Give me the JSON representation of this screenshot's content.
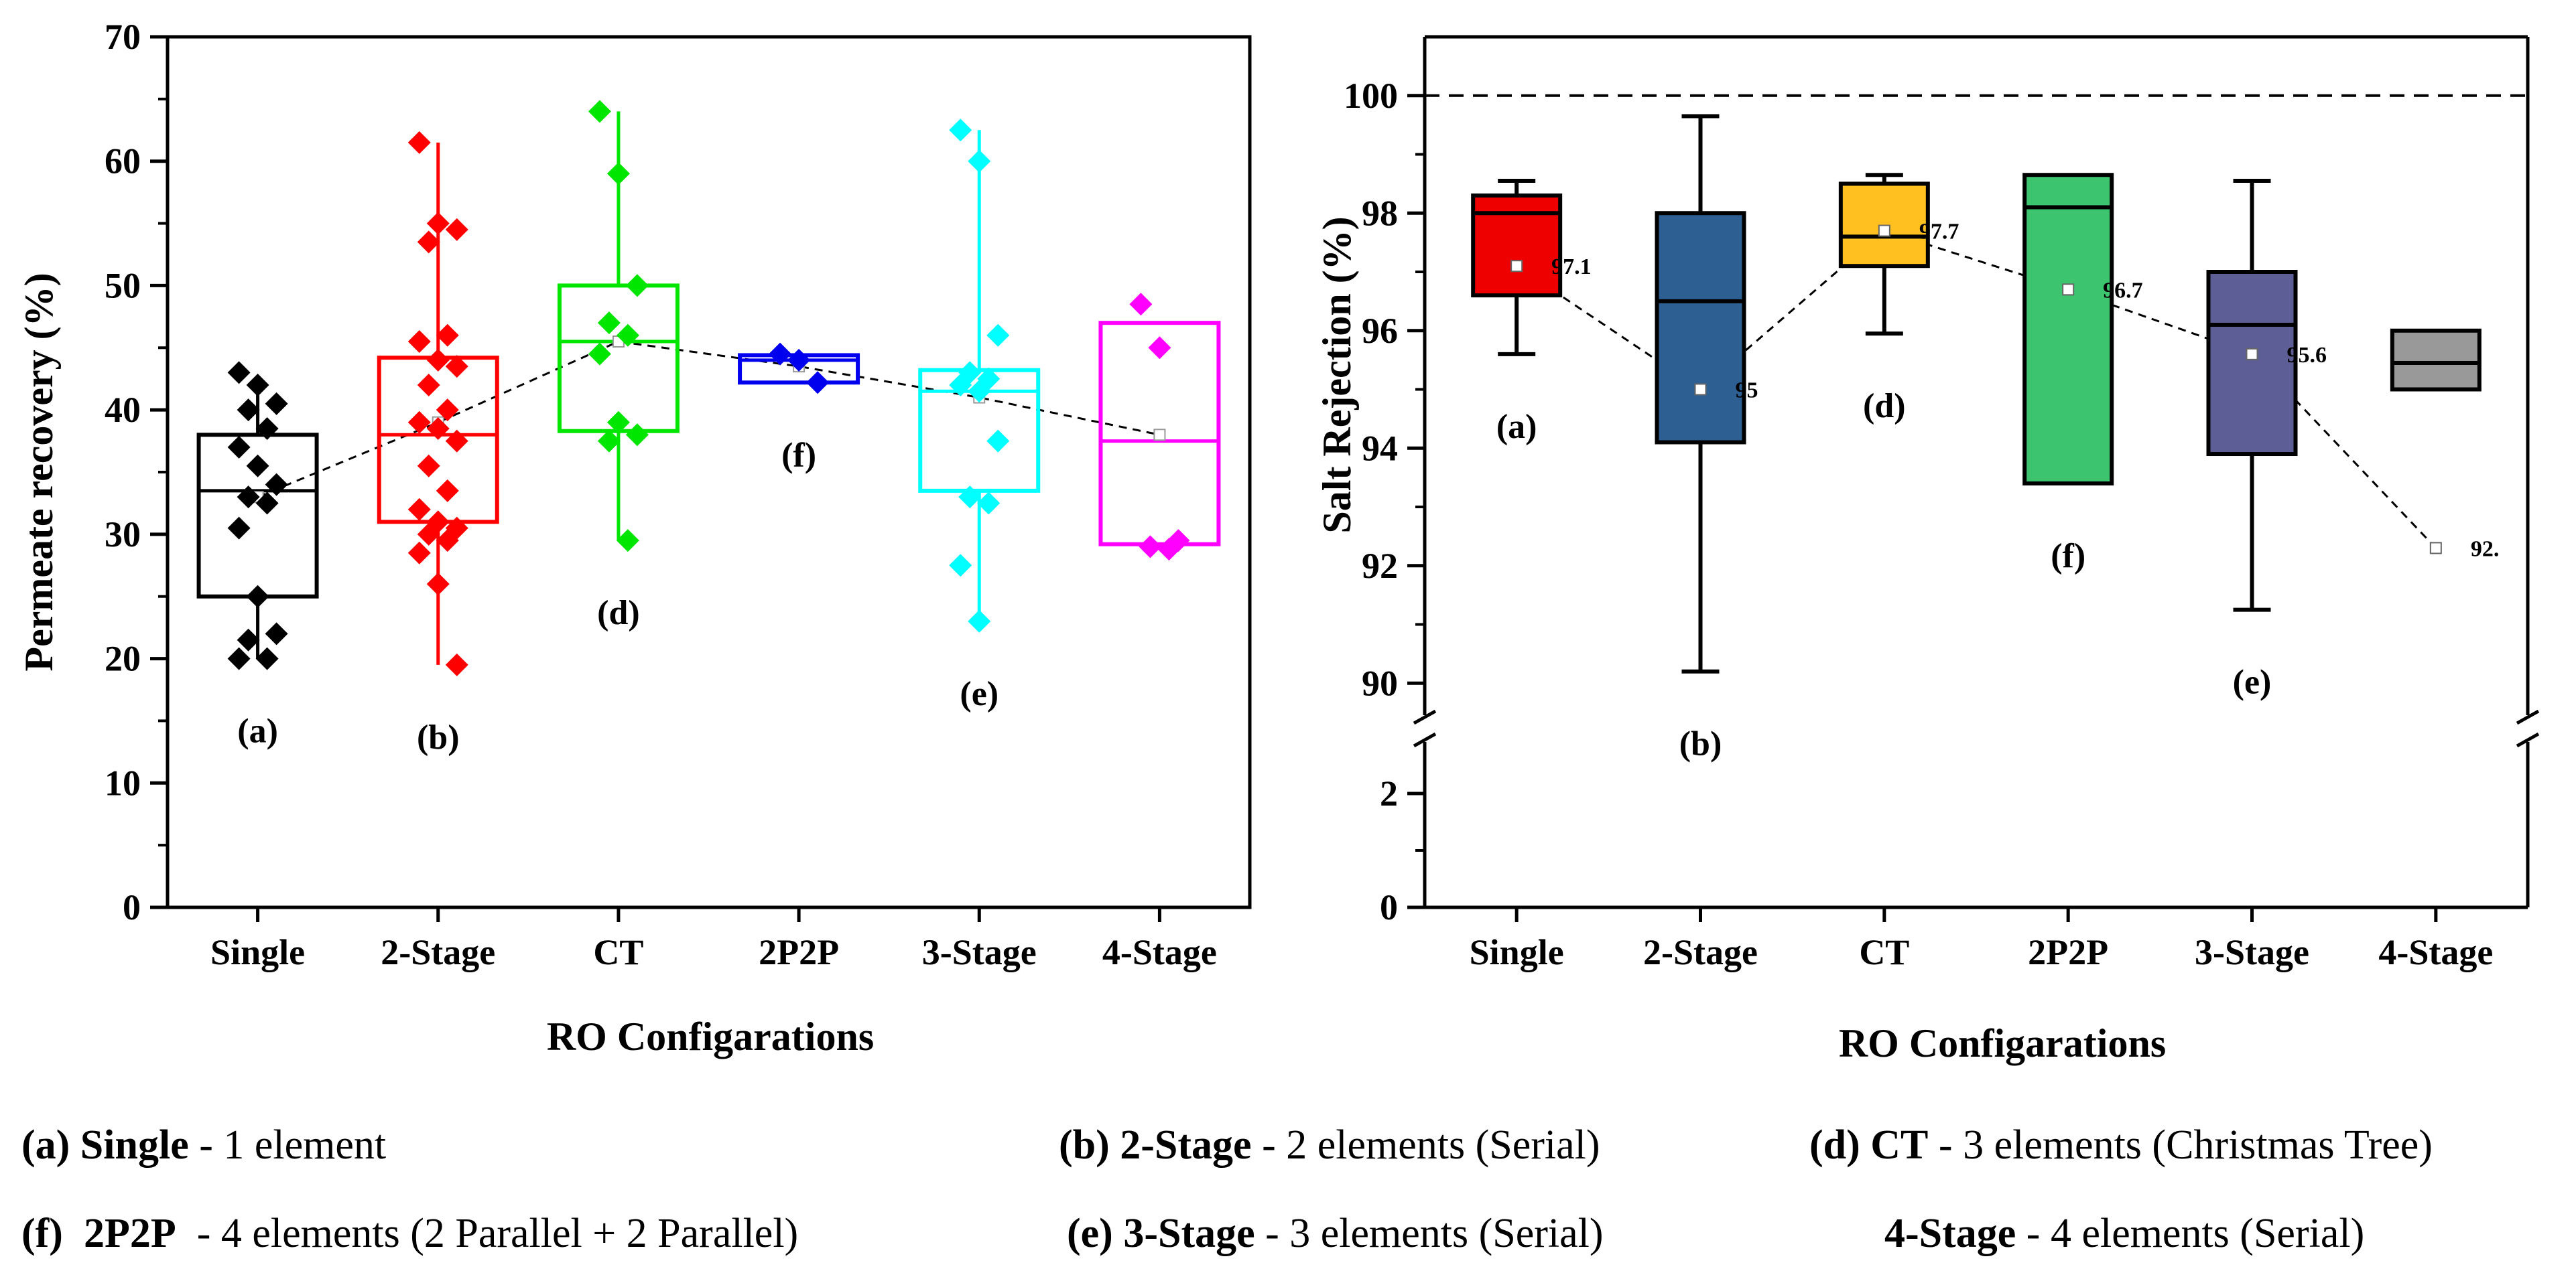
{
  "chart_data": [
    {
      "type": "box",
      "title": "",
      "xlabel": "RO Configarations",
      "ylabel": "Permeate recovery (%)",
      "ylim": [
        0,
        70
      ],
      "yticks": [
        0,
        10,
        20,
        30,
        40,
        50,
        60,
        70
      ],
      "categories": [
        "Single",
        "2-Stage",
        "CT",
        "2P2P",
        "3-Stage",
        "4-Stage"
      ],
      "letters": [
        "(a)",
        "(b)",
        "(d)",
        "(f)",
        "(e)",
        ""
      ],
      "colors": [
        "#000000",
        "#ff0000",
        "#00e600",
        "#0000ee",
        "#00ffff",
        "#ff00ff"
      ],
      "series": [
        {
          "name": "Single",
          "q1": 25,
          "median": 33.5,
          "q3": 38,
          "mean": 33,
          "whisker_low": 20,
          "whisker_high": 42.5,
          "points": [
            43,
            42,
            40.5,
            40,
            38.5,
            37,
            35.5,
            34,
            33,
            32.5,
            30.5,
            25,
            22,
            21.5,
            20,
            20
          ]
        },
        {
          "name": "2-Stage",
          "q1": 31,
          "median": 38,
          "q3": 44.2,
          "mean": 39,
          "whisker_low": 19.5,
          "whisker_high": 61.5,
          "points": [
            61.5,
            55,
            54.5,
            53.5,
            46,
            45.5,
            44,
            43.5,
            42,
            40,
            39,
            38.5,
            37.5,
            35.5,
            33.5,
            32,
            31,
            30.5,
            30,
            29.5,
            28.5,
            26,
            19.5
          ]
        },
        {
          "name": "CT",
          "q1": 38.3,
          "median": 45.5,
          "q3": 50,
          "mean": 45.5,
          "whisker_low": 29.5,
          "whisker_high": 64,
          "points": [
            64,
            59,
            50,
            47,
            46,
            44.5,
            39,
            38,
            37.5,
            29.5
          ]
        },
        {
          "name": "2P2P",
          "q1": 42.2,
          "median": 44,
          "q3": 44.4,
          "mean": 43.5,
          "whisker_low": 42.2,
          "whisker_high": 44.4,
          "points": [
            44.5,
            44,
            42.2
          ]
        },
        {
          "name": "3-Stage",
          "q1": 33.5,
          "median": 41.5,
          "q3": 43.2,
          "mean": 41,
          "whisker_low": 23,
          "whisker_high": 62.5,
          "points": [
            62.5,
            60,
            46,
            43,
            42.5,
            42,
            41.5,
            37.5,
            33,
            32.5,
            27.5,
            23
          ]
        },
        {
          "name": "4-Stage",
          "q1": 29.2,
          "median": 37.5,
          "q3": 47,
          "mean": 38,
          "whisker_low": 29.2,
          "whisker_high": 47,
          "points": [
            48.5,
            45,
            29.5,
            29,
            28.8
          ]
        }
      ]
    },
    {
      "type": "box",
      "title": "",
      "xlabel": "RO Configarations",
      "ylabel": "Salt Rejection (%)",
      "ylim_lower": [
        0,
        3
      ],
      "ylim_upper": [
        89,
        101
      ],
      "axis_break": true,
      "yticks": [
        0,
        2,
        90,
        92,
        94,
        96,
        98,
        100
      ],
      "reference_line": 100,
      "categories": [
        "Single",
        "2-Stage",
        "CT",
        "2P2P",
        "3-Stage",
        "4-Stage"
      ],
      "letters": [
        "(a)",
        "(b)",
        "(d)",
        "(f)",
        "(e)",
        ""
      ],
      "colors": [
        "#ee0000",
        "#2e5f93",
        "#ffc020",
        "#3cc46e",
        "#5e5e96",
        "#999999"
      ],
      "mean_labels": [
        "97.1",
        "95",
        "97.7",
        "96.7",
        "95.6",
        "92."
      ],
      "series": [
        {
          "name": "Single",
          "q1": 96.6,
          "median": 98,
          "q3": 98.3,
          "mean": 97.1,
          "whisker_low": 95.6,
          "whisker_high": 98.55
        },
        {
          "name": "2-Stage",
          "q1": 94.1,
          "median": 96.5,
          "q3": 98,
          "mean": 95,
          "whisker_low": 90.2,
          "whisker_high": 99.65
        },
        {
          "name": "CT",
          "q1": 97.1,
          "median": 97.6,
          "q3": 98.5,
          "mean": 97.7,
          "whisker_low": 95.95,
          "whisker_high": 98.65
        },
        {
          "name": "2P2P",
          "q1": 93.4,
          "median": 98.1,
          "q3": 98.65,
          "mean": 96.7,
          "whisker_low": 93.4,
          "whisker_high": 98.65
        },
        {
          "name": "3-Stage",
          "q1": 93.9,
          "median": 96.1,
          "q3": 97,
          "mean": 95.6,
          "whisker_low": 91.25,
          "whisker_high": 98.55
        },
        {
          "name": "4-Stage",
          "q1": 95,
          "median": 95.45,
          "q3": 96,
          "mean": 92.3,
          "whisker_low": 95,
          "whisker_high": 96
        }
      ]
    }
  ],
  "legend": [
    {
      "letter": "(a)",
      "name": "Single",
      "desc": " - 1 element"
    },
    {
      "letter": "(b)",
      "name": "2-Stage",
      "desc": " - 2 elements (Serial)"
    },
    {
      "letter": "(d)",
      "name": "CT",
      "desc": " - 3 elements (Christmas Tree)"
    },
    {
      "letter": "(f)",
      "name": "2P2P",
      "desc": "  - 4 elements (2 Parallel + 2 Parallel)"
    },
    {
      "letter": "(e)",
      "name": "3-Stage",
      "desc": " - 3 elements (Serial)"
    },
    {
      "letter": "",
      "name": "4-Stage",
      "desc": " - 4 elements (Serial)"
    }
  ]
}
